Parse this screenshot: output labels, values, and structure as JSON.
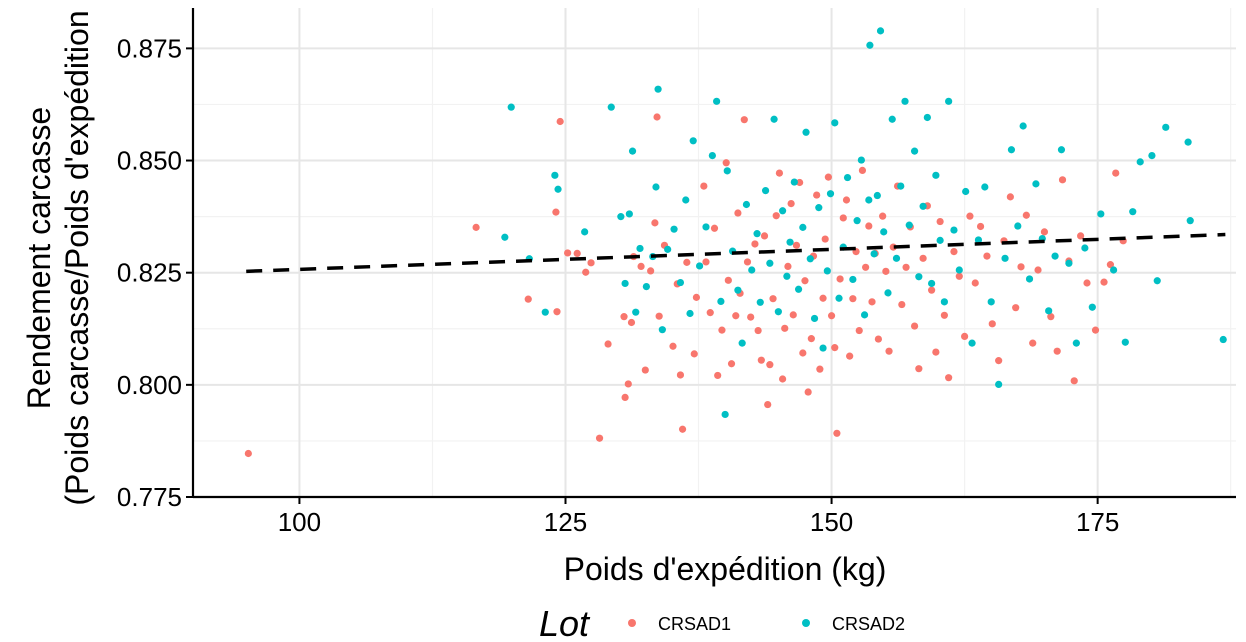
{
  "chart_data": {
    "type": "scatter",
    "xlabel": "Poids d'expédition (kg)",
    "ylabel_lines": [
      "Rendement carcasse",
      "(Poids carcasse/Poids d'expédition"
    ],
    "xlim": [
      90,
      188
    ],
    "ylim": [
      0.775,
      0.884
    ],
    "x_ticks": [
      100,
      125,
      150,
      175
    ],
    "x_tick_labels": [
      "100",
      "125",
      "150",
      "175"
    ],
    "y_ticks": [
      0.775,
      0.8,
      0.825,
      0.85,
      0.875
    ],
    "y_tick_labels": [
      "0.775",
      "0.800",
      "0.825",
      "0.850",
      "0.875"
    ],
    "grid": true,
    "legend": {
      "title": "Lot",
      "position": "bottom",
      "items": [
        {
          "label": "CRSAD1",
          "color": "#F8766D"
        },
        {
          "label": "CRSAD2",
          "color": "#00BFC4"
        }
      ]
    },
    "trendline": {
      "style": "dashed",
      "color": "#000000",
      "x": [
        95,
        187
      ],
      "y": [
        0.8253,
        0.8335
      ]
    },
    "series": [
      {
        "name": "CRSAD1",
        "color": "#F8766D",
        "points": [
          [
            95.2,
            0.7847
          ],
          [
            116.6,
            0.8351
          ],
          [
            121.5,
            0.8191
          ],
          [
            124.1,
            0.8385
          ],
          [
            124.5,
            0.8587
          ],
          [
            124.2,
            0.8163
          ],
          [
            125.2,
            0.8294
          ],
          [
            126.1,
            0.8293
          ],
          [
            126.9,
            0.8251
          ],
          [
            127.4,
            0.8272
          ],
          [
            128.2,
            0.7881
          ],
          [
            129.0,
            0.8091
          ],
          [
            130.5,
            0.8152
          ],
          [
            130.6,
            0.7972
          ],
          [
            130.9,
            0.8002
          ],
          [
            131.2,
            0.8139
          ],
          [
            131.4,
            0.8286
          ],
          [
            132.1,
            0.8264
          ],
          [
            132.5,
            0.8033
          ],
          [
            133.0,
            0.8254
          ],
          [
            133.4,
            0.8361
          ],
          [
            133.6,
            0.8597
          ],
          [
            133.8,
            0.8153
          ],
          [
            134.3,
            0.8311
          ],
          [
            135.1,
            0.8086
          ],
          [
            135.5,
            0.8225
          ],
          [
            135.8,
            0.8022
          ],
          [
            136.0,
            0.7901
          ],
          [
            136.4,
            0.8273
          ],
          [
            137.1,
            0.8069
          ],
          [
            137.3,
            0.8195
          ],
          [
            138.0,
            0.8443
          ],
          [
            138.2,
            0.8274
          ],
          [
            138.6,
            0.8161
          ],
          [
            139.0,
            0.8349
          ],
          [
            139.3,
            0.8021
          ],
          [
            139.7,
            0.8122
          ],
          [
            140.1,
            0.8495
          ],
          [
            140.3,
            0.8233
          ],
          [
            140.6,
            0.8047
          ],
          [
            141.0,
            0.8154
          ],
          [
            141.2,
            0.8383
          ],
          [
            141.4,
            0.8204
          ],
          [
            141.8,
            0.8591
          ],
          [
            142.1,
            0.8274
          ],
          [
            142.4,
            0.8151
          ],
          [
            142.8,
            0.8314
          ],
          [
            143.1,
            0.8121
          ],
          [
            143.4,
            0.8055
          ],
          [
            143.7,
            0.8332
          ],
          [
            144.0,
            0.7956
          ],
          [
            144.2,
            0.8045
          ],
          [
            144.5,
            0.8192
          ],
          [
            144.8,
            0.8377
          ],
          [
            145.1,
            0.8472
          ],
          [
            145.4,
            0.8013
          ],
          [
            145.6,
            0.8126
          ],
          [
            145.9,
            0.8264
          ],
          [
            146.2,
            0.8404
          ],
          [
            146.4,
            0.8156
          ],
          [
            146.7,
            0.8311
          ],
          [
            147.0,
            0.8451
          ],
          [
            147.3,
            0.8071
          ],
          [
            147.5,
            0.8232
          ],
          [
            147.8,
            0.7984
          ],
          [
            148.1,
            0.8103
          ],
          [
            148.3,
            0.8287
          ],
          [
            148.6,
            0.8423
          ],
          [
            148.9,
            0.8035
          ],
          [
            149.2,
            0.8193
          ],
          [
            149.4,
            0.8325
          ],
          [
            149.7,
            0.8463
          ],
          [
            150.0,
            0.8154
          ],
          [
            150.3,
            0.8083
          ],
          [
            150.5,
            0.7892
          ],
          [
            150.8,
            0.8236
          ],
          [
            151.1,
            0.8372
          ],
          [
            151.4,
            0.8412
          ],
          [
            151.7,
            0.8064
          ],
          [
            152.0,
            0.8192
          ],
          [
            152.3,
            0.8297
          ],
          [
            152.6,
            0.8121
          ],
          [
            152.9,
            0.8478
          ],
          [
            153.2,
            0.8262
          ],
          [
            153.5,
            0.8354
          ],
          [
            153.8,
            0.8185
          ],
          [
            154.1,
            0.8293
          ],
          [
            154.4,
            0.8102
          ],
          [
            154.8,
            0.8376
          ],
          [
            155.1,
            0.8253
          ],
          [
            155.4,
            0.8075
          ],
          [
            155.8,
            0.8307
          ],
          [
            156.2,
            0.8443
          ],
          [
            156.6,
            0.8179
          ],
          [
            157.0,
            0.8262
          ],
          [
            157.4,
            0.8352
          ],
          [
            157.8,
            0.8131
          ],
          [
            158.2,
            0.8036
          ],
          [
            158.6,
            0.8282
          ],
          [
            159.0,
            0.8399
          ],
          [
            159.4,
            0.8211
          ],
          [
            159.8,
            0.8073
          ],
          [
            160.2,
            0.8364
          ],
          [
            160.6,
            0.8155
          ],
          [
            161.0,
            0.8016
          ],
          [
            161.5,
            0.8297
          ],
          [
            162.0,
            0.8242
          ],
          [
            162.5,
            0.8108
          ],
          [
            163.0,
            0.8376
          ],
          [
            163.5,
            0.8227
          ],
          [
            164.0,
            0.8353
          ],
          [
            164.6,
            0.8287
          ],
          [
            165.1,
            0.8136
          ],
          [
            165.7,
            0.8054
          ],
          [
            166.2,
            0.8321
          ],
          [
            166.8,
            0.8419
          ],
          [
            167.3,
            0.8172
          ],
          [
            167.8,
            0.8263
          ],
          [
            168.3,
            0.8378
          ],
          [
            168.9,
            0.8093
          ],
          [
            169.4,
            0.8256
          ],
          [
            170.0,
            0.8341
          ],
          [
            170.6,
            0.8152
          ],
          [
            171.2,
            0.8075
          ],
          [
            171.7,
            0.8457
          ],
          [
            172.3,
            0.8276
          ],
          [
            172.8,
            0.8009
          ],
          [
            173.4,
            0.8332
          ],
          [
            174.0,
            0.8227
          ],
          [
            174.8,
            0.8122
          ],
          [
            175.6,
            0.8229
          ],
          [
            176.2,
            0.8268
          ],
          [
            176.7,
            0.8472
          ],
          [
            177.4,
            0.8321
          ]
        ]
      },
      {
        "name": "CRSAD2",
        "color": "#00BFC4",
        "points": [
          [
            119.3,
            0.8329
          ],
          [
            119.9,
            0.8619
          ],
          [
            121.6,
            0.8281
          ],
          [
            123.1,
            0.8162
          ],
          [
            124.0,
            0.8467
          ],
          [
            124.3,
            0.8436
          ],
          [
            126.8,
            0.8341
          ],
          [
            129.3,
            0.8619
          ],
          [
            130.2,
            0.8375
          ],
          [
            130.6,
            0.8226
          ],
          [
            131.0,
            0.8381
          ],
          [
            131.3,
            0.8521
          ],
          [
            131.6,
            0.8162
          ],
          [
            132.0,
            0.8304
          ],
          [
            132.6,
            0.8219
          ],
          [
            133.2,
            0.8286
          ],
          [
            133.5,
            0.8441
          ],
          [
            133.7,
            0.8659
          ],
          [
            134.1,
            0.8123
          ],
          [
            134.6,
            0.8302
          ],
          [
            135.2,
            0.8347
          ],
          [
            135.8,
            0.8228
          ],
          [
            136.3,
            0.8412
          ],
          [
            136.7,
            0.8159
          ],
          [
            137.0,
            0.8544
          ],
          [
            137.6,
            0.8265
          ],
          [
            138.2,
            0.8352
          ],
          [
            138.8,
            0.8511
          ],
          [
            139.2,
            0.8632
          ],
          [
            139.6,
            0.8186
          ],
          [
            140.0,
            0.7934
          ],
          [
            140.2,
            0.8477
          ],
          [
            140.7,
            0.8298
          ],
          [
            141.2,
            0.8211
          ],
          [
            141.6,
            0.8093
          ],
          [
            142.0,
            0.8402
          ],
          [
            142.5,
            0.8256
          ],
          [
            143.0,
            0.8337
          ],
          [
            143.3,
            0.8184
          ],
          [
            143.8,
            0.8433
          ],
          [
            144.2,
            0.8271
          ],
          [
            144.6,
            0.8592
          ],
          [
            145.0,
            0.8163
          ],
          [
            145.4,
            0.8388
          ],
          [
            145.8,
            0.8242
          ],
          [
            146.1,
            0.8318
          ],
          [
            146.5,
            0.8452
          ],
          [
            146.9,
            0.8213
          ],
          [
            147.3,
            0.8351
          ],
          [
            147.6,
            0.8563
          ],
          [
            148.0,
            0.8281
          ],
          [
            148.4,
            0.8148
          ],
          [
            148.8,
            0.8395
          ],
          [
            149.2,
            0.8082
          ],
          [
            149.6,
            0.8254
          ],
          [
            149.9,
            0.8426
          ],
          [
            150.3,
            0.8584
          ],
          [
            150.7,
            0.8193
          ],
          [
            151.1,
            0.8307
          ],
          [
            151.5,
            0.8462
          ],
          [
            152.0,
            0.8235
          ],
          [
            152.4,
            0.8366
          ],
          [
            152.8,
            0.8501
          ],
          [
            153.1,
            0.8156
          ],
          [
            153.5,
            0.8412
          ],
          [
            153.6,
            0.8757
          ],
          [
            154.0,
            0.8292
          ],
          [
            154.3,
            0.8422
          ],
          [
            154.6,
            0.8789
          ],
          [
            154.9,
            0.8341
          ],
          [
            155.3,
            0.8205
          ],
          [
            155.7,
            0.8592
          ],
          [
            156.1,
            0.8282
          ],
          [
            156.5,
            0.8443
          ],
          [
            156.9,
            0.8632
          ],
          [
            157.3,
            0.8356
          ],
          [
            157.8,
            0.8521
          ],
          [
            158.2,
            0.8241
          ],
          [
            158.6,
            0.8398
          ],
          [
            159.0,
            0.8596
          ],
          [
            159.4,
            0.8226
          ],
          [
            159.8,
            0.8467
          ],
          [
            160.2,
            0.8322
          ],
          [
            160.6,
            0.8185
          ],
          [
            161.0,
            0.8632
          ],
          [
            161.5,
            0.8345
          ],
          [
            162.0,
            0.8256
          ],
          [
            162.6,
            0.8431
          ],
          [
            163.2,
            0.8093
          ],
          [
            163.8,
            0.8323
          ],
          [
            164.4,
            0.8441
          ],
          [
            165.0,
            0.8185
          ],
          [
            165.7,
            0.8001
          ],
          [
            166.3,
            0.8282
          ],
          [
            166.9,
            0.8524
          ],
          [
            167.5,
            0.8354
          ],
          [
            168.0,
            0.8577
          ],
          [
            168.6,
            0.8236
          ],
          [
            169.2,
            0.8448
          ],
          [
            169.8,
            0.8326
          ],
          [
            170.4,
            0.8165
          ],
          [
            171.0,
            0.8287
          ],
          [
            171.6,
            0.8524
          ],
          [
            172.3,
            0.8271
          ],
          [
            173.0,
            0.8093
          ],
          [
            173.8,
            0.8305
          ],
          [
            174.5,
            0.8173
          ],
          [
            175.3,
            0.8381
          ],
          [
            176.5,
            0.8256
          ],
          [
            177.6,
            0.8095
          ],
          [
            178.3,
            0.8386
          ],
          [
            179.0,
            0.8497
          ],
          [
            180.1,
            0.8511
          ],
          [
            180.6,
            0.8232
          ],
          [
            181.4,
            0.8574
          ],
          [
            183.5,
            0.8541
          ],
          [
            183.7,
            0.8366
          ],
          [
            186.8,
            0.8101
          ]
        ]
      }
    ]
  }
}
